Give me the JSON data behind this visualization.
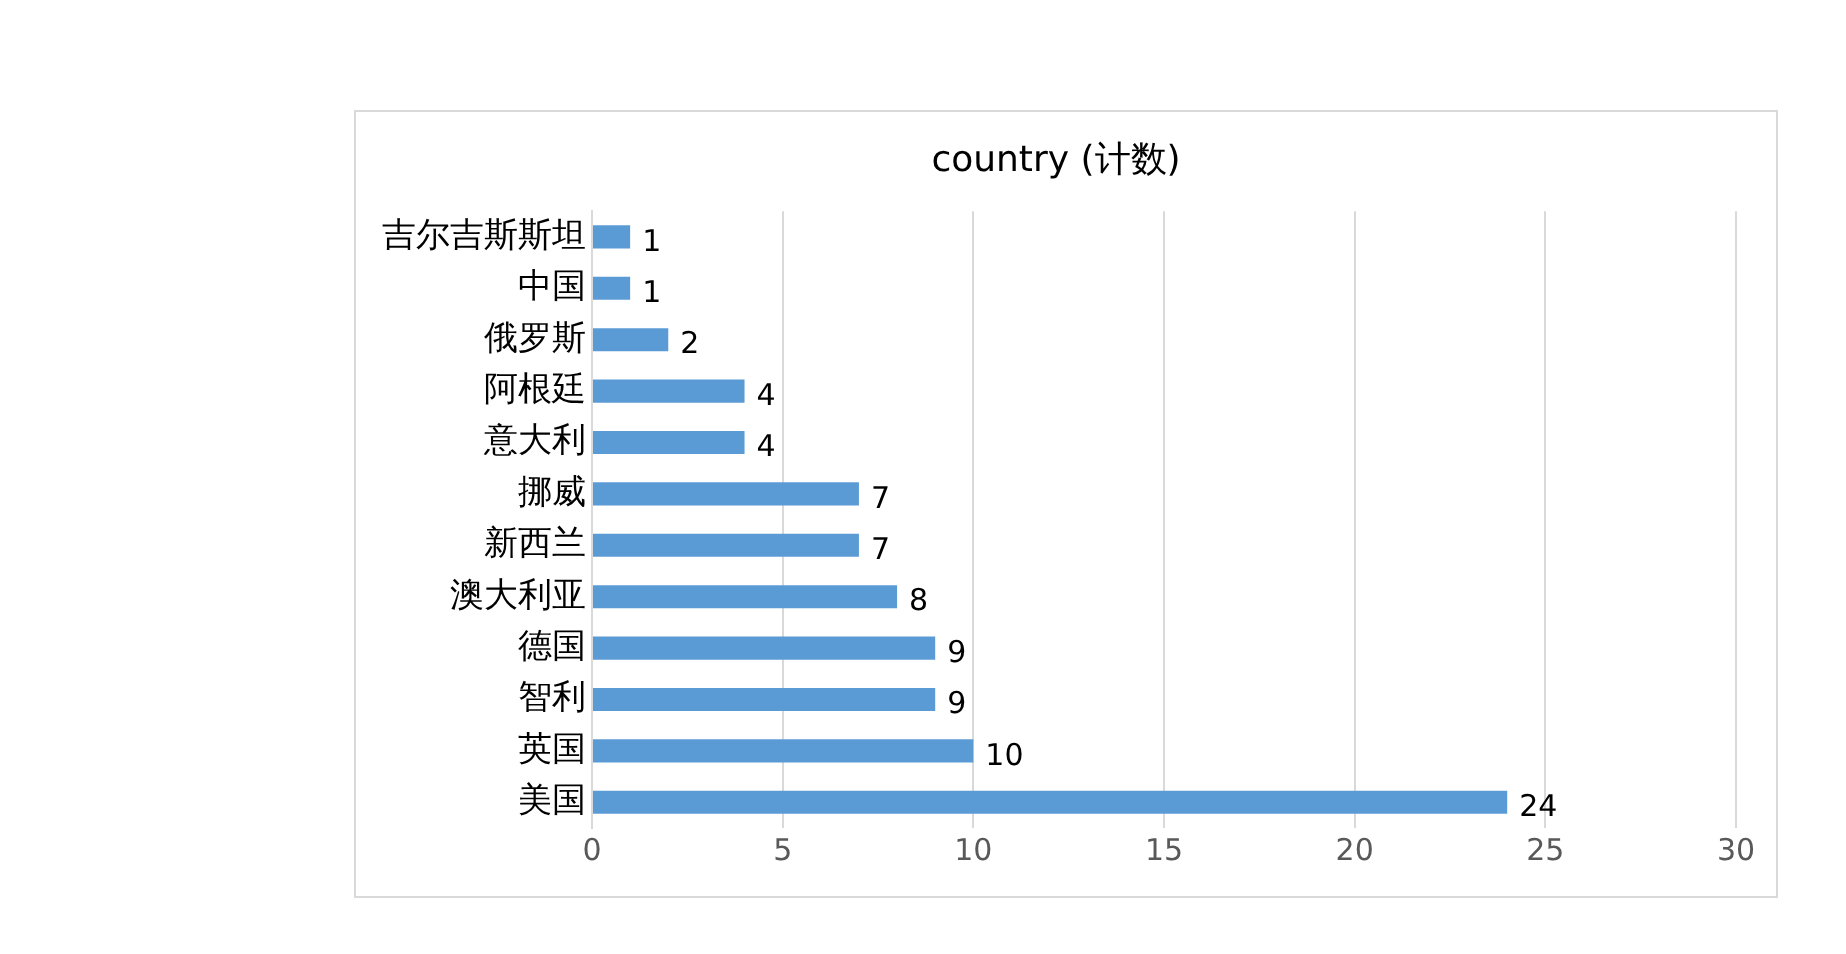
{
  "chart_data": {
    "type": "bar",
    "title": "country (计数)",
    "orientation": "horizontal",
    "categories": [
      "吉尔吉斯斯坦",
      "中国",
      "俄罗斯",
      "阿根廷",
      "意大利",
      "挪威",
      "新西兰",
      "澳大利亚",
      "德国",
      "智利",
      "英国",
      "美国"
    ],
    "values": [
      1,
      1,
      2,
      4,
      4,
      7,
      7,
      8,
      9,
      9,
      10,
      24
    ],
    "color": "#5b9bd5",
    "xlim": [
      0,
      30
    ],
    "xticks": [
      0,
      5,
      10,
      15,
      20,
      25,
      30
    ],
    "grid": "x",
    "data_labels": true,
    "legend": false
  }
}
